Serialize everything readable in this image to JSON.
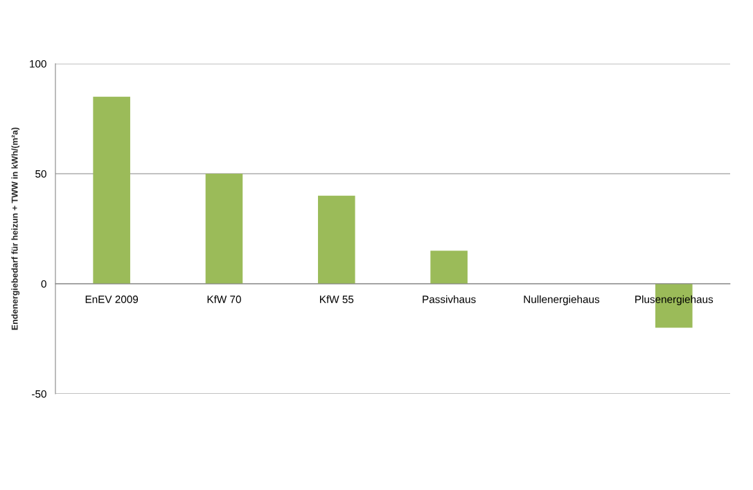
{
  "chart_data": {
    "type": "bar",
    "ylabel": "Endenergiebedarf für heizun + TWW in kWh/(m²a)",
    "categories": [
      "EnEV 2009",
      "KfW 70",
      "KfW 55",
      "Passivhaus",
      "Nullenergiehaus",
      "Plusenergiehaus"
    ],
    "values": [
      85,
      50,
      40,
      15,
      0,
      -20
    ],
    "color": "#9bbb59",
    "ylim": [
      -50,
      100
    ],
    "yticks": [
      -50,
      0,
      50,
      100
    ],
    "grid": "y"
  }
}
